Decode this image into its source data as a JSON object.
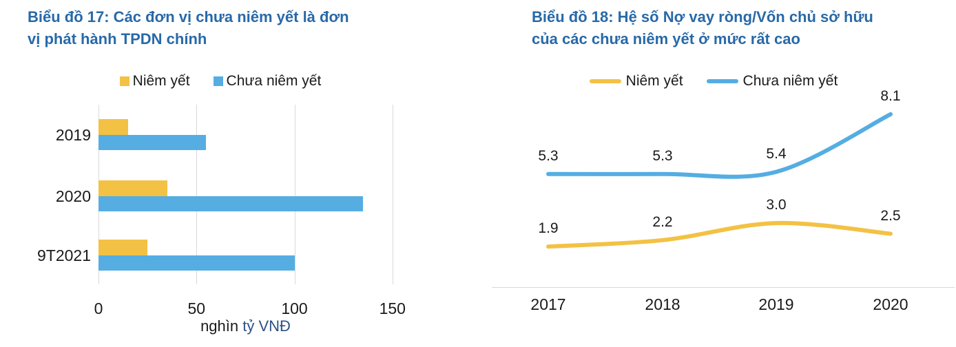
{
  "accent_colors": {
    "title_blue": "#2869A8",
    "series_yellow": "#F3C144",
    "series_blue": "#55ADE2",
    "gridline_gray": "#D9D9D9",
    "text_black": "#1A1A1A",
    "axis_unit_blue": "#2B5186"
  },
  "chart_data": [
    {
      "id": "chart-17",
      "type": "bar",
      "orientation": "horizontal",
      "title": "Biểu đồ 17: Các đơn vị chưa niêm yết là đơn vị phát hành TPDN chính",
      "title_lines": [
        "Biểu đồ 17: Các đơn vị chưa niêm yết là đơn",
        "vị phát hành TPDN chính"
      ],
      "categories": [
        "2019",
        "2020",
        "9T2021"
      ],
      "series": [
        {
          "name": "Niêm yết",
          "color": "#F3C144",
          "values": [
            15,
            35,
            25
          ]
        },
        {
          "name": "Chưa niêm yết",
          "color": "#55ADE2",
          "values": [
            55,
            135,
            100
          ]
        }
      ],
      "xticks": [
        0,
        50,
        100,
        150
      ],
      "xlim": [
        0,
        157
      ],
      "xlabel": "nghìn tỷ VNĐ",
      "xlabel_parts": [
        {
          "text": "nghìn ",
          "color": "#1A1A1A"
        },
        {
          "text": "tỷ VNĐ",
          "color": "#2B5186"
        }
      ],
      "grid": "vertical",
      "legend_position": "top-center"
    },
    {
      "id": "chart-18",
      "type": "line",
      "title": "Biểu đồ 18: Hệ số Nợ vay ròng/Vốn chủ sở hữu của các chưa niêm yết ở mức rất cao",
      "title_lines": [
        "Biểu đồ 18: Hệ số Nợ vay ròng/Vốn chủ sở hữu",
        "của các chưa niêm yết ở mức rất cao"
      ],
      "x": [
        "2017",
        "2018",
        "2019",
        "2020"
      ],
      "series": [
        {
          "name": "Niêm yết",
          "color": "#F3C144",
          "values": [
            1.9,
            2.2,
            3.0,
            2.5
          ]
        },
        {
          "name": "Chưa niêm yết",
          "color": "#55ADE2",
          "values": [
            5.3,
            5.3,
            5.4,
            8.1
          ]
        }
      ],
      "ylim": [
        0,
        9
      ],
      "smooth": true,
      "data_labels": true,
      "grid": "none",
      "legend_position": "top-center"
    }
  ]
}
